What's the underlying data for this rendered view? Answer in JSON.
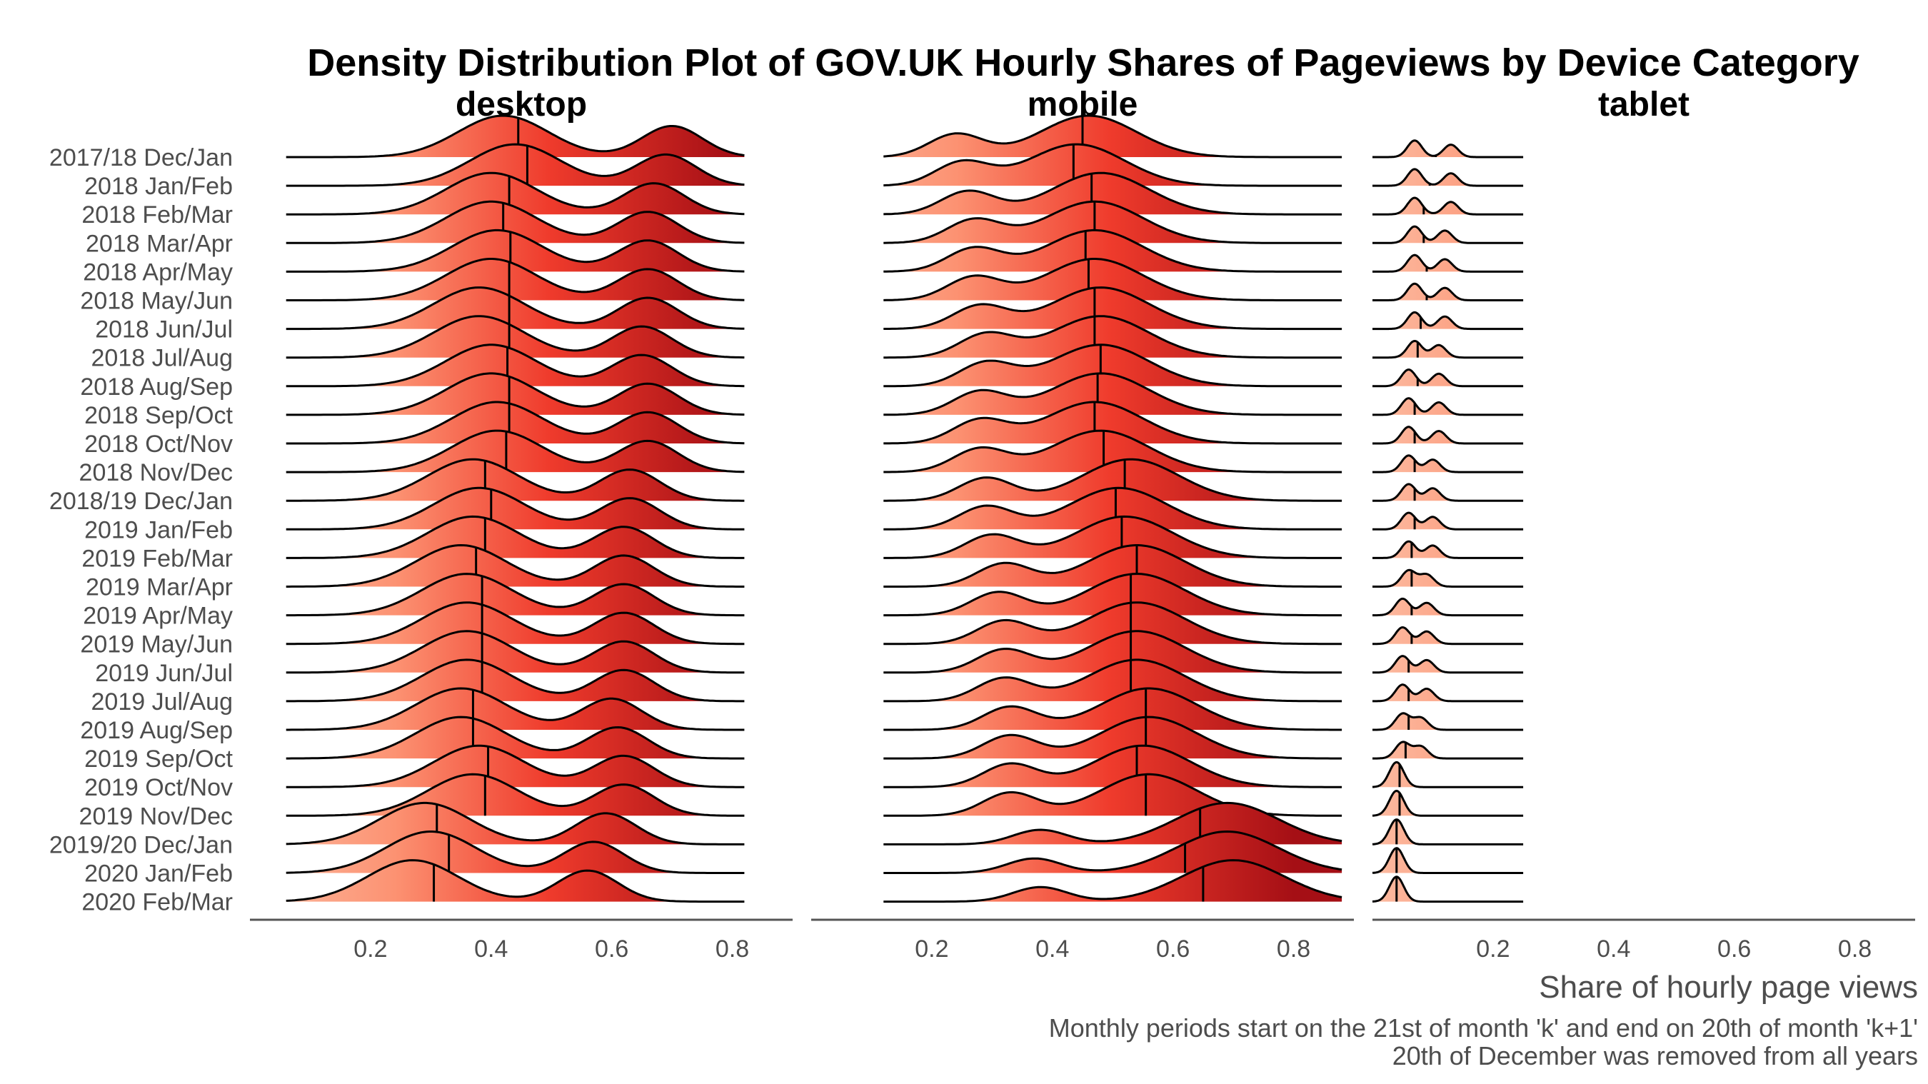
{
  "chart_data": {
    "type": "ridgeline-density",
    "title": "Density Distribution Plot of GOV.UK Hourly Shares of Pageviews by Device Category",
    "xlabel": "Share of hourly page views",
    "caption_lines": [
      "Monthly periods start on the 21st of month 'k' and end on 20th of month 'k+1'",
      "20th of December was removed from all years"
    ],
    "xlim": [
      0,
      0.9
    ],
    "x_ticks": [
      0.2,
      0.4,
      0.6,
      0.8
    ],
    "x_tick_labels": [
      "0.2",
      "0.4",
      "0.6",
      "0.8"
    ],
    "grid": false,
    "fill_gradient": {
      "low_color": "#fcbba1",
      "mid_color": "#ef3b2c",
      "high_color": "#a50f15"
    },
    "periods": [
      "2017/18 Dec/Jan",
      "2018 Jan/Feb",
      "2018 Feb/Mar",
      "2018 Mar/Apr",
      "2018 Apr/May",
      "2018 May/Jun",
      "2018 Jun/Jul",
      "2018 Jul/Aug",
      "2018 Aug/Sep",
      "2018 Sep/Oct",
      "2018 Oct/Nov",
      "2018 Nov/Dec",
      "2018/19 Dec/Jan",
      "2019 Jan/Feb",
      "2019 Feb/Mar",
      "2019 Mar/Apr",
      "2019 Apr/May",
      "2019 May/Jun",
      "2019 Jun/Jul",
      "2019 Jul/Aug",
      "2019 Aug/Sep",
      "2019 Sep/Oct",
      "2019 Oct/Nov",
      "2019 Nov/Dec",
      "2019/20 Dec/Jan",
      "2020 Jan/Feb",
      "2020 Feb/Mar"
    ],
    "panels": [
      {
        "name": "desktop",
        "range": [
          0.06,
          0.82
        ],
        "medians": [
          0.445,
          0.46,
          0.43,
          0.42,
          0.432,
          0.43,
          0.43,
          0.43,
          0.427,
          0.43,
          0.43,
          0.425,
          0.39,
          0.4,
          0.39,
          0.375,
          0.385,
          0.385,
          0.385,
          0.385,
          0.37,
          0.37,
          0.395,
          0.39,
          0.31,
          0.33,
          0.305
        ],
        "peak_positions": [
          [
            0.42,
            0.7
          ],
          [
            0.44,
            0.69
          ],
          [
            0.4,
            0.67
          ],
          [
            0.4,
            0.66
          ],
          [
            0.41,
            0.66
          ],
          [
            0.4,
            0.66
          ],
          [
            0.38,
            0.66
          ],
          [
            0.38,
            0.65
          ],
          [
            0.4,
            0.65
          ],
          [
            0.4,
            0.66
          ],
          [
            0.41,
            0.66
          ],
          [
            0.41,
            0.66
          ],
          [
            0.37,
            0.63
          ],
          [
            0.38,
            0.63
          ],
          [
            0.37,
            0.62
          ],
          [
            0.35,
            0.62
          ],
          [
            0.36,
            0.62
          ],
          [
            0.36,
            0.62
          ],
          [
            0.36,
            0.62
          ],
          [
            0.36,
            0.62
          ],
          [
            0.35,
            0.6
          ],
          [
            0.35,
            0.61
          ],
          [
            0.38,
            0.62
          ],
          [
            0.37,
            0.62
          ],
          [
            0.29,
            0.59
          ],
          [
            0.3,
            0.57
          ],
          [
            0.27,
            0.56
          ]
        ]
      },
      {
        "name": "mobile",
        "range": [
          0.12,
          0.88
        ],
        "medians": [
          0.45,
          0.435,
          0.465,
          0.47,
          0.455,
          0.46,
          0.47,
          0.47,
          0.48,
          0.475,
          0.47,
          0.485,
          0.52,
          0.505,
          0.515,
          0.54,
          0.53,
          0.53,
          0.53,
          0.53,
          0.555,
          0.555,
          0.54,
          0.555,
          0.645,
          0.62,
          0.65
        ],
        "peak_positions": [
          [
            0.24,
            0.46
          ],
          [
            0.25,
            0.44
          ],
          [
            0.26,
            0.48
          ],
          [
            0.27,
            0.47
          ],
          [
            0.27,
            0.47
          ],
          [
            0.27,
            0.47
          ],
          [
            0.28,
            0.48
          ],
          [
            0.29,
            0.48
          ],
          [
            0.29,
            0.48
          ],
          [
            0.28,
            0.48
          ],
          [
            0.28,
            0.47
          ],
          [
            0.28,
            0.48
          ],
          [
            0.29,
            0.53
          ],
          [
            0.29,
            0.51
          ],
          [
            0.3,
            0.52
          ],
          [
            0.32,
            0.54
          ],
          [
            0.31,
            0.54
          ],
          [
            0.32,
            0.54
          ],
          [
            0.32,
            0.54
          ],
          [
            0.32,
            0.54
          ],
          [
            0.33,
            0.56
          ],
          [
            0.33,
            0.56
          ],
          [
            0.33,
            0.55
          ],
          [
            0.33,
            0.56
          ],
          [
            0.38,
            0.69
          ],
          [
            0.37,
            0.69
          ],
          [
            0.38,
            0.7
          ]
        ]
      },
      {
        "name": "tablet",
        "range": [
          0.0,
          0.25
        ],
        "medians": [
          0.105,
          0.095,
          0.085,
          0.085,
          0.09,
          0.09,
          0.08,
          0.075,
          0.075,
          0.07,
          0.07,
          0.07,
          0.07,
          0.07,
          0.065,
          0.065,
          0.065,
          0.065,
          0.06,
          0.06,
          0.06,
          0.055,
          0.045,
          0.045,
          0.04,
          0.04,
          0.04
        ],
        "peak_positions": [
          [
            0.07,
            0.13
          ],
          [
            0.07,
            0.13
          ],
          [
            0.07,
            0.13
          ],
          [
            0.07,
            0.12
          ],
          [
            0.07,
            0.12
          ],
          [
            0.07,
            0.12
          ],
          [
            0.07,
            0.12
          ],
          [
            0.07,
            0.11
          ],
          [
            0.06,
            0.11
          ],
          [
            0.06,
            0.11
          ],
          [
            0.06,
            0.11
          ],
          [
            0.06,
            0.1
          ],
          [
            0.06,
            0.1
          ],
          [
            0.06,
            0.1
          ],
          [
            0.06,
            0.1
          ],
          [
            0.06,
            0.09
          ],
          [
            0.05,
            0.09
          ],
          [
            0.05,
            0.09
          ],
          [
            0.05,
            0.09
          ],
          [
            0.05,
            0.09
          ],
          [
            0.05,
            0.08
          ],
          [
            0.05,
            0.08
          ],
          [
            0.04,
            0.06
          ],
          [
            0.04,
            0.06
          ],
          [
            0.04,
            0.05
          ],
          [
            0.04,
            0.04
          ],
          [
            0.04,
            0.04
          ]
        ]
      }
    ]
  }
}
